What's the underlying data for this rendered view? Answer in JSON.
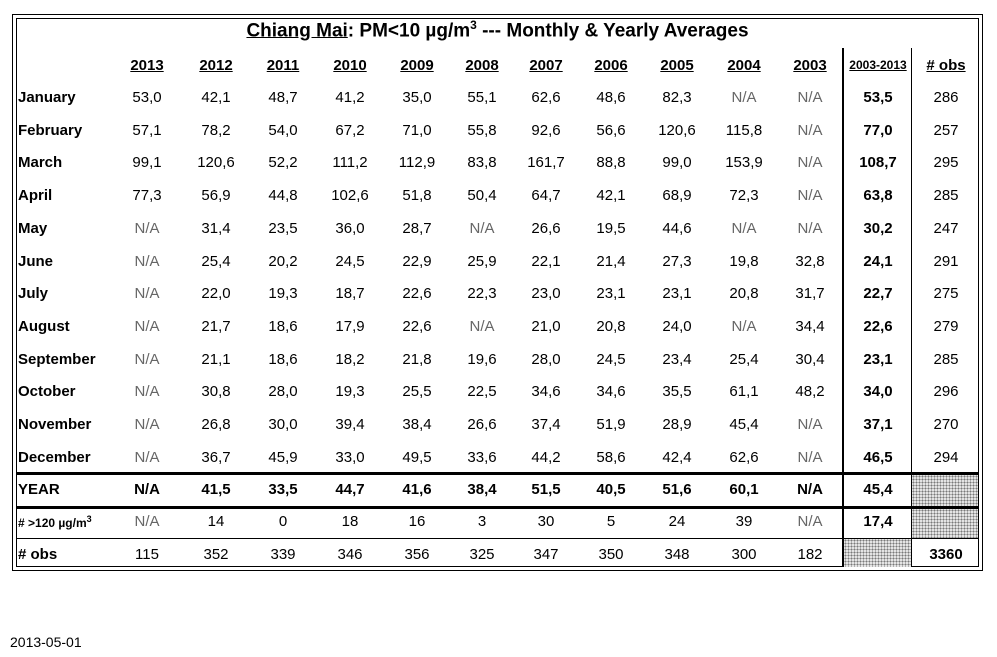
{
  "title": {
    "city": "Chiang Mai",
    "rest": ": PM<10 µg/m",
    "sup": "3",
    "tail": " --- Monthly & Yearly Averages"
  },
  "columns": [
    "2013",
    "2012",
    "2011",
    "2010",
    "2009",
    "2008",
    "2007",
    "2006",
    "2005",
    "2004",
    "2003"
  ],
  "avg_header": "2003-2013",
  "obs_header": "# obs",
  "rows": [
    {
      "label": "January",
      "values": [
        "53,0",
        "42,1",
        "48,7",
        "41,2",
        "35,0",
        "55,1",
        "62,6",
        "48,6",
        "82,3",
        "N/A",
        "N/A"
      ],
      "avg": "53,5",
      "obs": "286"
    },
    {
      "label": "February",
      "values": [
        "57,1",
        "78,2",
        "54,0",
        "67,2",
        "71,0",
        "55,8",
        "92,6",
        "56,6",
        "120,6",
        "115,8",
        "N/A"
      ],
      "avg": "77,0",
      "obs": "257"
    },
    {
      "label": "March",
      "values": [
        "99,1",
        "120,6",
        "52,2",
        "111,2",
        "112,9",
        "83,8",
        "161,7",
        "88,8",
        "99,0",
        "153,9",
        "N/A"
      ],
      "avg": "108,7",
      "obs": "295"
    },
    {
      "label": "April",
      "values": [
        "77,3",
        "56,9",
        "44,8",
        "102,6",
        "51,8",
        "50,4",
        "64,7",
        "42,1",
        "68,9",
        "72,3",
        "N/A"
      ],
      "avg": "63,8",
      "obs": "285"
    },
    {
      "label": "May",
      "values": [
        "N/A",
        "31,4",
        "23,5",
        "36,0",
        "28,7",
        "N/A",
        "26,6",
        "19,5",
        "44,6",
        "N/A",
        "N/A"
      ],
      "avg": "30,2",
      "obs": "247"
    },
    {
      "label": "June",
      "values": [
        "N/A",
        "25,4",
        "20,2",
        "24,5",
        "22,9",
        "25,9",
        "22,1",
        "21,4",
        "27,3",
        "19,8",
        "32,8"
      ],
      "avg": "24,1",
      "obs": "291"
    },
    {
      "label": "July",
      "values": [
        "N/A",
        "22,0",
        "19,3",
        "18,7",
        "22,6",
        "22,3",
        "23,0",
        "23,1",
        "23,1",
        "20,8",
        "31,7"
      ],
      "avg": "22,7",
      "obs": "275"
    },
    {
      "label": "August",
      "values": [
        "N/A",
        "21,7",
        "18,6",
        "17,9",
        "22,6",
        "N/A",
        "21,0",
        "20,8",
        "24,0",
        "N/A",
        "34,4"
      ],
      "avg": "22,6",
      "obs": "279"
    },
    {
      "label": "September",
      "values": [
        "N/A",
        "21,1",
        "18,6",
        "18,2",
        "21,8",
        "19,6",
        "28,0",
        "24,5",
        "23,4",
        "25,4",
        "30,4"
      ],
      "avg": "23,1",
      "obs": "285"
    },
    {
      "label": "October",
      "values": [
        "N/A",
        "30,8",
        "28,0",
        "19,3",
        "25,5",
        "22,5",
        "34,6",
        "34,6",
        "35,5",
        "61,1",
        "48,2"
      ],
      "avg": "34,0",
      "obs": "296"
    },
    {
      "label": "November",
      "values": [
        "N/A",
        "26,8",
        "30,0",
        "39,4",
        "38,4",
        "26,6",
        "37,4",
        "51,9",
        "28,9",
        "45,4",
        "N/A"
      ],
      "avg": "37,1",
      "obs": "270"
    },
    {
      "label": "December",
      "values": [
        "N/A",
        "36,7",
        "45,9",
        "33,0",
        "49,5",
        "33,6",
        "44,2",
        "58,6",
        "42,4",
        "62,6",
        "N/A"
      ],
      "avg": "46,5",
      "obs": "294"
    }
  ],
  "year_row": {
    "label": "YEAR",
    "values": [
      "N/A",
      "41,5",
      "33,5",
      "44,7",
      "41,6",
      "38,4",
      "51,5",
      "40,5",
      "51,6",
      "60,1",
      "N/A"
    ],
    "avg": "45,4"
  },
  "exceed_row": {
    "label": "# >120 µg/m",
    "label_sup": "3",
    "values": [
      "N/A",
      "14",
      "0",
      "18",
      "16",
      "3",
      "30",
      "5",
      "24",
      "39",
      "N/A"
    ],
    "avg": "17,4"
  },
  "obs_row": {
    "label": "# obs",
    "values": [
      "115",
      "352",
      "339",
      "346",
      "356",
      "325",
      "347",
      "350",
      "348",
      "300",
      "182"
    ],
    "total": "3360"
  },
  "date": "2013-05-01"
}
